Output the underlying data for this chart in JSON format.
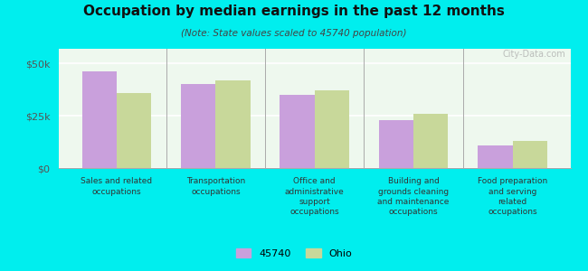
{
  "title": "Occupation by median earnings in the past 12 months",
  "subtitle": "(Note: State values scaled to 45740 population)",
  "categories": [
    "Sales and related\noccupations",
    "Transportation\noccupations",
    "Office and\nadministrative\nsupport\noccupations",
    "Building and\ngrounds cleaning\nand maintenance\noccupations",
    "Food preparation\nand serving\nrelated\noccupations"
  ],
  "values_45740": [
    46000,
    40000,
    35000,
    23000,
    11000
  ],
  "values_ohio": [
    36000,
    42000,
    37000,
    26000,
    13000
  ],
  "color_45740": "#c9a0dc",
  "color_ohio": "#c8d89a",
  "background_color": "#00eeee",
  "ylim": [
    0,
    57000
  ],
  "yticks": [
    0,
    25000,
    50000
  ],
  "ytick_labels": [
    "$0",
    "$25k",
    "$50k"
  ],
  "legend_45740": "45740",
  "legend_ohio": "Ohio",
  "watermark": "City-Data.com",
  "bar_width": 0.35
}
